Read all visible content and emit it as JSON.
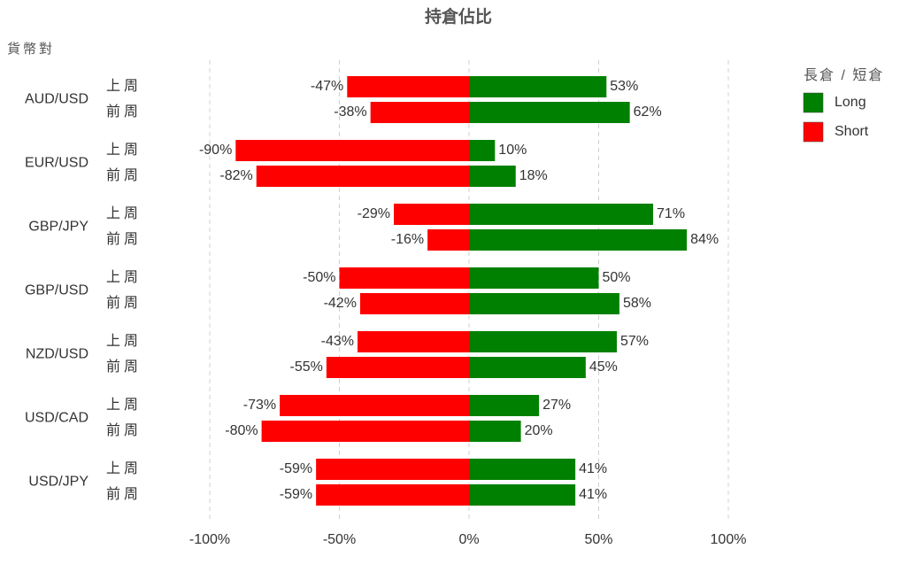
{
  "chart_data": {
    "type": "diverging-bar",
    "title": "持倉佔比",
    "y_axis_label": "貨幣對",
    "legend_title": "長倉 / 短倉",
    "groups": [
      "AUD/USD",
      "EUR/USD",
      "GBP/JPY",
      "GBP/USD",
      "NZD/USD",
      "USD/CAD",
      "USD/JPY"
    ],
    "periods": [
      "上周",
      "前周"
    ],
    "series": [
      {
        "name": "Long",
        "color": "#008000",
        "values": [
          53,
          62,
          10,
          18,
          71,
          84,
          50,
          58,
          57,
          45,
          27,
          20,
          41,
          41
        ],
        "value_labels": [
          "53%",
          "62%",
          "10%",
          "18%",
          "71%",
          "84%",
          "50%",
          "58%",
          "57%",
          "45%",
          "27%",
          "20%",
          "41%",
          "41%"
        ]
      },
      {
        "name": "Short",
        "color": "#ff0000",
        "values": [
          -47,
          -38,
          -90,
          -82,
          -29,
          -16,
          -50,
          -42,
          -43,
          -55,
          -73,
          -80,
          -59,
          -59
        ],
        "value_labels": [
          "-47%",
          "-38%",
          "-90%",
          "-82%",
          "-29%",
          "-16%",
          "-50%",
          "-42%",
          "-43%",
          "-55%",
          "-73%",
          "-80%",
          "-59%",
          "-59%"
        ]
      }
    ],
    "xlim": [
      -100,
      100
    ],
    "xticks": [
      {
        "value": -100,
        "label": "-100%"
      },
      {
        "value": -50,
        "label": "-50%"
      },
      {
        "value": 0,
        "label": "0%"
      },
      {
        "value": 50,
        "label": "50%"
      },
      {
        "value": 100,
        "label": "100%"
      }
    ],
    "grid": true
  }
}
